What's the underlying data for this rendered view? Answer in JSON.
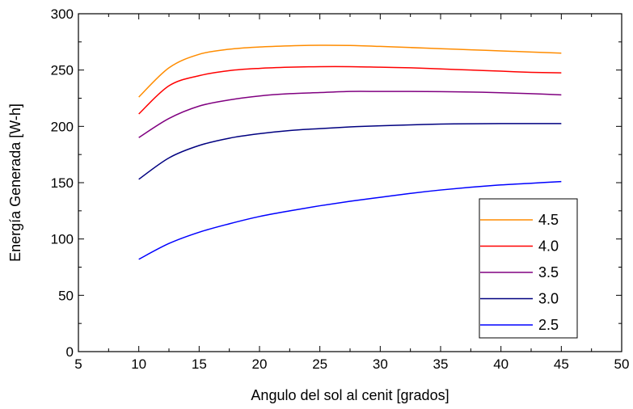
{
  "chart_data": {
    "type": "line",
    "xlabel": "Angulo del sol al cenit [grados]",
    "ylabel": "Energía Generada [W-h]",
    "xlim": [
      5,
      50
    ],
    "ylim": [
      0,
      300
    ],
    "x_ticks": [
      5,
      10,
      15,
      20,
      25,
      30,
      35,
      40,
      45,
      50
    ],
    "y_ticks": [
      0,
      50,
      100,
      150,
      200,
      250,
      300
    ],
    "grid": false,
    "legend_position": "bottom-right",
    "x": [
      10,
      12.5,
      15,
      17.5,
      20,
      22.5,
      25,
      27.5,
      30,
      32.5,
      35,
      37.5,
      40,
      42.5,
      45
    ],
    "series": [
      {
        "name": "4.5",
        "color": "#ff8c00",
        "values": [
          226,
          252,
          264,
          268.5,
          270.5,
          271.5,
          272,
          271.8,
          271,
          270,
          269,
          268,
          267,
          266,
          265
        ]
      },
      {
        "name": "4.0",
        "color": "#ff0000",
        "values": [
          211,
          236,
          245,
          249.5,
          251.5,
          252.5,
          253,
          253,
          252.5,
          252,
          251,
          250,
          249,
          248,
          247.5
        ]
      },
      {
        "name": "3.5",
        "color": "#800080",
        "values": [
          190,
          207,
          218,
          223.5,
          227,
          229,
          230,
          231,
          231,
          231,
          230.8,
          230.5,
          229.8,
          229,
          228
        ]
      },
      {
        "name": "3.0",
        "color": "#000080",
        "values": [
          153,
          172,
          183,
          189.5,
          193.5,
          196.3,
          198,
          199.5,
          200.5,
          201.3,
          202,
          202.3,
          202.5,
          202.5,
          202.5
        ]
      },
      {
        "name": "2.5",
        "color": "#0000ff",
        "values": [
          82,
          96,
          106,
          113.5,
          120,
          125,
          129.5,
          133.5,
          137,
          140.5,
          143.5,
          146,
          148,
          149.5,
          151
        ]
      }
    ]
  }
}
